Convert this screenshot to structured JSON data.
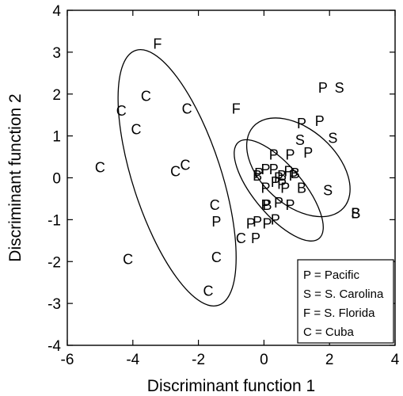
{
  "chart_data": {
    "type": "scatter",
    "xlabel": "Discriminant function 1",
    "ylabel": "Discriminant function 2",
    "xlim": [
      -6,
      4
    ],
    "ylim": [
      -4,
      4
    ],
    "xticks": [
      "-6",
      "-4",
      "-2",
      "0",
      "2",
      "4"
    ],
    "yticks": [
      "4",
      "3",
      "2",
      "1",
      "0",
      "-1",
      "-2",
      "-3",
      "-4"
    ],
    "xtick_values": [
      -6,
      -4,
      -2,
      0,
      2,
      4
    ],
    "ytick_values": [
      4,
      3,
      2,
      1,
      0,
      -1,
      -2,
      -3,
      -4
    ],
    "grid": false,
    "legend_position": "bottom-right",
    "legend": [
      {
        "symbol": "P",
        "text": "P = Pacific"
      },
      {
        "symbol": "S",
        "text": "S = S. Carolina"
      },
      {
        "symbol": "F",
        "text": "F = S. Florida"
      },
      {
        "symbol": "C",
        "text": "C = Cuba"
      }
    ],
    "points": [
      {
        "label": "F",
        "x": -3.25,
        "y": 3.2
      },
      {
        "label": "F",
        "x": -0.85,
        "y": 1.65
      },
      {
        "label": "C",
        "x": -3.6,
        "y": 1.95
      },
      {
        "label": "C",
        "x": -4.35,
        "y": 1.6
      },
      {
        "label": "C",
        "x": -2.35,
        "y": 1.65
      },
      {
        "label": "C",
        "x": -3.9,
        "y": 1.15
      },
      {
        "label": "C",
        "x": -5.0,
        "y": 0.25
      },
      {
        "label": "C",
        "x": -2.7,
        "y": 0.15
      },
      {
        "label": "C",
        "x": -2.4,
        "y": 0.3
      },
      {
        "label": "C",
        "x": -1.5,
        "y": -0.65
      },
      {
        "label": "C",
        "x": -4.15,
        "y": -1.95
      },
      {
        "label": "C",
        "x": -1.45,
        "y": -1.9
      },
      {
        "label": "C",
        "x": -0.7,
        "y": -1.45
      },
      {
        "label": "C",
        "x": -1.7,
        "y": -2.7
      },
      {
        "label": "P",
        "x": -1.45,
        "y": -1.05
      },
      {
        "label": "P",
        "x": -0.4,
        "y": -1.1
      },
      {
        "label": "P",
        "x": -0.25,
        "y": -1.45
      },
      {
        "label": "P",
        "x": -0.2,
        "y": -1.05
      },
      {
        "label": "P",
        "x": 0.1,
        "y": -1.1
      },
      {
        "label": "P",
        "x": 0.35,
        "y": -1.0
      },
      {
        "label": "P",
        "x": 0.45,
        "y": -0.6
      },
      {
        "label": "P",
        "x": 0.05,
        "y": -0.65
      },
      {
        "label": "P",
        "x": 0.55,
        "y": -0.15
      },
      {
        "label": "P",
        "x": 0.05,
        "y": -0.25
      },
      {
        "label": "P",
        "x": 0.35,
        "y": -0.1
      },
      {
        "label": "P",
        "x": 0.65,
        "y": -0.25
      },
      {
        "label": "P",
        "x": 0.8,
        "y": -0.65
      },
      {
        "label": "P",
        "x": -0.15,
        "y": 0.1
      },
      {
        "label": "P",
        "x": 0.05,
        "y": 0.2
      },
      {
        "label": "P",
        "x": 0.3,
        "y": 0.2
      },
      {
        "label": "P",
        "x": 0.45,
        "y": 0.0
      },
      {
        "label": "P",
        "x": 0.75,
        "y": 0.15
      },
      {
        "label": "P",
        "x": 0.9,
        "y": 0.05
      },
      {
        "label": "P",
        "x": 0.3,
        "y": 0.55
      },
      {
        "label": "P",
        "x": 0.8,
        "y": 0.55
      },
      {
        "label": "P",
        "x": 1.35,
        "y": 0.6
      },
      {
        "label": "P",
        "x": 1.15,
        "y": 1.3
      },
      {
        "label": "P",
        "x": 1.7,
        "y": 1.35
      },
      {
        "label": "P",
        "x": 1.8,
        "y": 2.15
      },
      {
        "label": "B",
        "x": -0.2,
        "y": 0.05
      },
      {
        "label": "B",
        "x": 0.55,
        "y": 0.05
      },
      {
        "label": "B",
        "x": 0.95,
        "y": 0.1
      },
      {
        "label": "B",
        "x": 1.15,
        "y": -0.25
      },
      {
        "label": "B",
        "x": 0.1,
        "y": -0.65
      },
      {
        "label": "B",
        "x": 2.8,
        "y": -0.85
      },
      {
        "label": "S",
        "x": 1.1,
        "y": 0.9
      },
      {
        "label": "S",
        "x": 2.1,
        "y": 0.95
      },
      {
        "label": "S",
        "x": 1.95,
        "y": -0.3
      },
      {
        "label": "S",
        "x": 2.3,
        "y": 2.15
      },
      {
        "label": "S",
        "x": 2.8,
        "y": -0.85
      }
    ],
    "ellipses": [
      {
        "group": "C",
        "cx": -2.65,
        "cy": 0.0,
        "rx": 1.35,
        "ry": 3.2,
        "angle": 18
      },
      {
        "group": "P",
        "cx": 1.05,
        "cy": 0.25,
        "rx": 1.15,
        "ry": 1.45,
        "angle": 48
      },
      {
        "group": "S",
        "cx": 0.45,
        "cy": -0.3,
        "rx": 0.75,
        "ry": 1.5,
        "angle": 40
      }
    ]
  }
}
